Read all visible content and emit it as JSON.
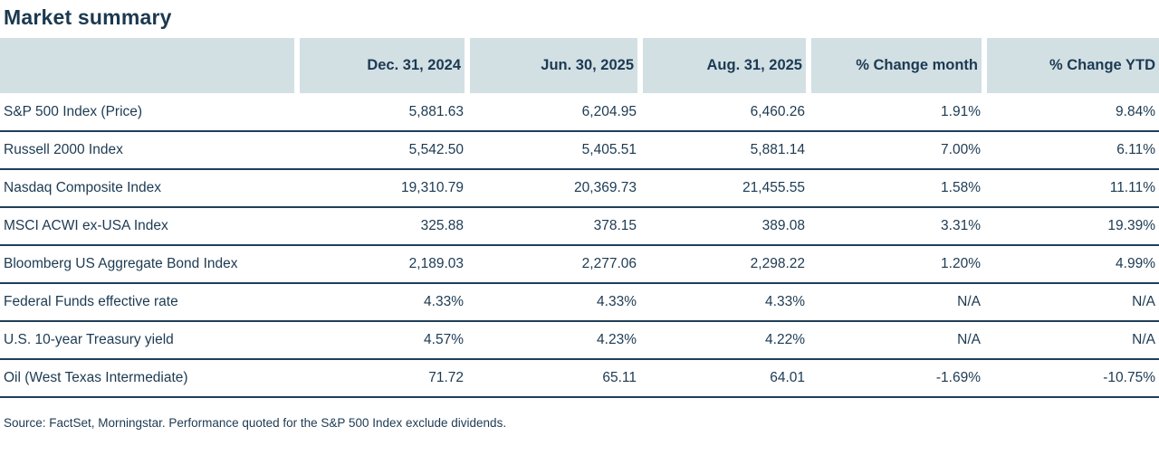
{
  "title": "Market summary",
  "colors": {
    "navy_text": "#1c3a52",
    "header_bg": "#d2e0e4",
    "row_divider": "#1f3e59",
    "page_bg": "#ffffff"
  },
  "table": {
    "columns": [
      "",
      "Dec. 31, 2024",
      "Jun. 30, 2025",
      "Aug. 31, 2025",
      "% Change month",
      "% Change YTD"
    ],
    "rows": [
      {
        "label": "S&P 500 Index (Price)",
        "values": [
          "5,881.63",
          "6,204.95",
          "6,460.26",
          "1.91%",
          "9.84%"
        ]
      },
      {
        "label": "Russell 2000 Index",
        "values": [
          "5,542.50",
          "5,405.51",
          "5,881.14",
          "7.00%",
          "6.11%"
        ]
      },
      {
        "label": "Nasdaq Composite Index",
        "values": [
          "19,310.79",
          "20,369.73",
          "21,455.55",
          "1.58%",
          "11.11%"
        ]
      },
      {
        "label": "MSCI ACWI ex-USA Index",
        "values": [
          "325.88",
          "378.15",
          "389.08",
          "3.31%",
          "19.39%"
        ]
      },
      {
        "label": "Bloomberg US Aggregate Bond Index",
        "values": [
          "2,189.03",
          "2,277.06",
          "2,298.22",
          "1.20%",
          "4.99%"
        ]
      },
      {
        "label": "Federal Funds effective rate",
        "values": [
          "4.33%",
          "4.33%",
          "4.33%",
          "N/A",
          "N/A"
        ]
      },
      {
        "label": "U.S. 10-year Treasury yield",
        "values": [
          "4.57%",
          "4.23%",
          "4.22%",
          "N/A",
          "N/A"
        ]
      },
      {
        "label": "Oil (West Texas Intermediate)",
        "values": [
          "71.72",
          "65.11",
          "64.01",
          "-1.69%",
          "-10.75%"
        ]
      }
    ]
  },
  "footer": {
    "source": "Source: FactSet, Morningstar. Performance quoted for the S&P 500 Index exclude dividends."
  }
}
